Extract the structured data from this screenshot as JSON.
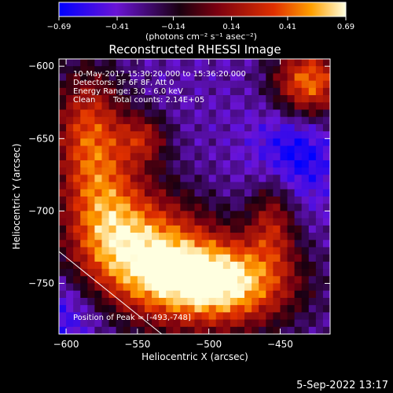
{
  "chart_data": {
    "type": "heatmap",
    "title": "Reconstructed RHESSI Image",
    "xlabel": "Heliocentric X (arcsec)",
    "ylabel": "Heliocentric Y (arcsec)",
    "xlim": [
      -605,
      -415
    ],
    "ylim": [
      -785,
      -595
    ],
    "x_ticks": [
      -600,
      -550,
      -500,
      -450
    ],
    "x_tick_labels": [
      "−600",
      "−550",
      "−500",
      "−450"
    ],
    "y_ticks": [
      -600,
      -650,
      -700,
      -750
    ],
    "y_tick_labels": [
      "−600",
      "−650",
      "−700",
      "−750"
    ],
    "colorbar": {
      "range": [
        -0.69,
        0.69
      ],
      "ticks": [
        -0.69,
        -0.41,
        -0.14,
        0.14,
        0.41,
        0.69
      ],
      "tick_labels": [
        "−0.69",
        "−0.41",
        "−0.14",
        "0.14",
        "0.41",
        "0.69"
      ],
      "unit_label": "(photons cm⁻² s⁻¹ asec⁻²)",
      "colors": [
        "#0000ff",
        "#6a14d6",
        "#1a0010",
        "#7a0010",
        "#e03000",
        "#ffa000",
        "#ffffe0"
      ]
    },
    "annotations": {
      "time_range": "10-May-2017 15:30:20.000 to 15:36:20.000",
      "detectors": "Detectors: 3F 6F 8F, Att 0",
      "energy_range": "Energy Range: 3.0 - 6.0 keV",
      "method": "Clean",
      "total_counts": "Total counts: 2.14E+05",
      "peak": "Position of Peak = [-493,-748]"
    },
    "peak_position": [
      -493,
      -748
    ],
    "limb_line": [
      [
        -605,
        -728
      ],
      [
        -533,
        -785
      ]
    ]
  },
  "footer": {
    "timestamp": "5-Sep-2022 13:17"
  }
}
